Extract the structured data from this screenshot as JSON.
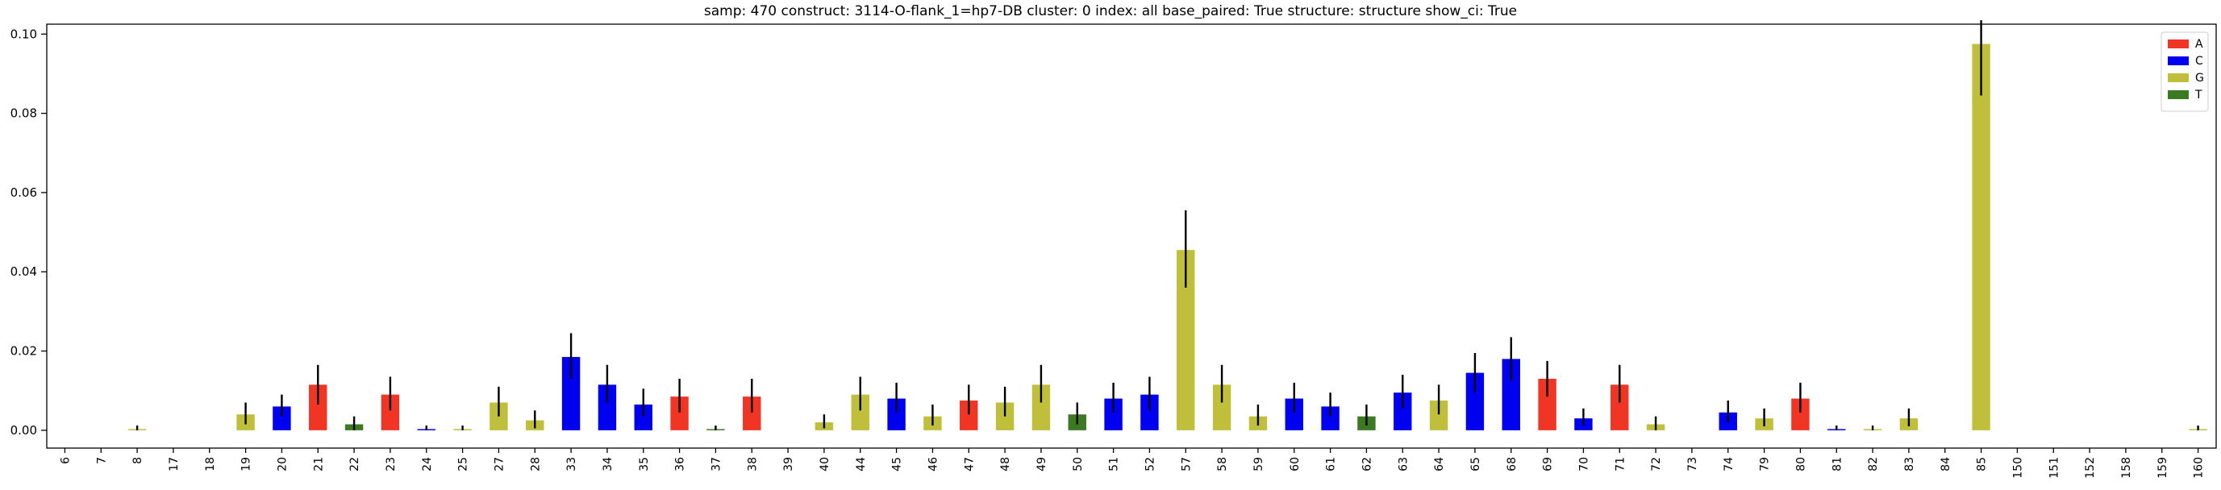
{
  "chart_data": {
    "type": "bar",
    "title": "samp: 470  construct: 3114-O-flank_1=hp7-DB  cluster: 0  index: all  base_paired: True  structure: structure  show_ci: True",
    "xlabel": "",
    "ylabel": "",
    "ylim": [
      -0.0045,
      0.1025
    ],
    "yticks": [
      0.0,
      0.02,
      0.04,
      0.06,
      0.08,
      0.1
    ],
    "ytick_labels": [
      "0.00",
      "0.02",
      "0.04",
      "0.06",
      "0.08",
      "0.10"
    ],
    "grid": false,
    "legend_position": "top-right",
    "colors": {
      "A": "#f03524",
      "C": "#0000f0",
      "G": "#bfbf3b",
      "T": "#3b7a22"
    },
    "legend": [
      {
        "label": "A",
        "color": "#f03524"
      },
      {
        "label": "C",
        "color": "#0000f0"
      },
      {
        "label": "G",
        "color": "#bfbf3b"
      },
      {
        "label": "T",
        "color": "#3b7a22"
      }
    ],
    "categories": [
      "6",
      "7",
      "8",
      "17",
      "18",
      "19",
      "20",
      "21",
      "22",
      "23",
      "24",
      "25",
      "27",
      "28",
      "33",
      "34",
      "35",
      "36",
      "37",
      "38",
      "39",
      "40",
      "44",
      "45",
      "46",
      "47",
      "48",
      "49",
      "50",
      "51",
      "52",
      "57",
      "58",
      "59",
      "60",
      "61",
      "62",
      "63",
      "64",
      "65",
      "68",
      "69",
      "70",
      "71",
      "72",
      "73",
      "74",
      "79",
      "80",
      "81",
      "82",
      "83",
      "84",
      "85",
      "150",
      "151",
      "152",
      "158",
      "159",
      "160"
    ],
    "bars": [
      {
        "x": "6",
        "base": "",
        "value": 0,
        "ci": null
      },
      {
        "x": "7",
        "base": "",
        "value": 0,
        "ci": null
      },
      {
        "x": "8",
        "base": "G",
        "value": 0.0003,
        "ci": [
          0.0,
          0.0012
        ]
      },
      {
        "x": "17",
        "base": "",
        "value": 0,
        "ci": null
      },
      {
        "x": "18",
        "base": "",
        "value": 0,
        "ci": null
      },
      {
        "x": "19",
        "base": "G",
        "value": 0.004,
        "ci": [
          0.0015,
          0.007
        ]
      },
      {
        "x": "20",
        "base": "C",
        "value": 0.006,
        "ci": [
          0.0035,
          0.009
        ]
      },
      {
        "x": "21",
        "base": "A",
        "value": 0.0115,
        "ci": [
          0.0065,
          0.0165
        ]
      },
      {
        "x": "22",
        "base": "T",
        "value": 0.0015,
        "ci": [
          0.0,
          0.0035
        ]
      },
      {
        "x": "23",
        "base": "A",
        "value": 0.009,
        "ci": [
          0.005,
          0.0135
        ]
      },
      {
        "x": "24",
        "base": "C",
        "value": 0.0003,
        "ci": [
          0.0,
          0.0012
        ]
      },
      {
        "x": "25",
        "base": "G",
        "value": 0.0003,
        "ci": [
          0.0,
          0.0012
        ]
      },
      {
        "x": "27",
        "base": "G",
        "value": 0.007,
        "ci": [
          0.0035,
          0.011
        ]
      },
      {
        "x": "28",
        "base": "G",
        "value": 0.0025,
        "ci": [
          0.0005,
          0.005
        ]
      },
      {
        "x": "33",
        "base": "C",
        "value": 0.0185,
        "ci": [
          0.013,
          0.0245
        ]
      },
      {
        "x": "34",
        "base": "C",
        "value": 0.0115,
        "ci": [
          0.007,
          0.0165
        ]
      },
      {
        "x": "35",
        "base": "C",
        "value": 0.0065,
        "ci": [
          0.0035,
          0.0105
        ]
      },
      {
        "x": "36",
        "base": "A",
        "value": 0.0085,
        "ci": [
          0.0045,
          0.013
        ]
      },
      {
        "x": "37",
        "base": "T",
        "value": 0.0003,
        "ci": [
          0.0,
          0.0012
        ]
      },
      {
        "x": "38",
        "base": "A",
        "value": 0.0085,
        "ci": [
          0.0045,
          0.013
        ]
      },
      {
        "x": "39",
        "base": "",
        "value": 0,
        "ci": null
      },
      {
        "x": "40",
        "base": "G",
        "value": 0.002,
        "ci": [
          0.0005,
          0.004
        ]
      },
      {
        "x": "44",
        "base": "G",
        "value": 0.009,
        "ci": [
          0.005,
          0.0135
        ]
      },
      {
        "x": "45",
        "base": "C",
        "value": 0.008,
        "ci": [
          0.0045,
          0.012
        ]
      },
      {
        "x": "46",
        "base": "G",
        "value": 0.0035,
        "ci": [
          0.0012,
          0.0065
        ]
      },
      {
        "x": "47",
        "base": "A",
        "value": 0.0075,
        "ci": [
          0.004,
          0.0115
        ]
      },
      {
        "x": "48",
        "base": "G",
        "value": 0.007,
        "ci": [
          0.0035,
          0.011
        ]
      },
      {
        "x": "49",
        "base": "G",
        "value": 0.0115,
        "ci": [
          0.007,
          0.0165
        ]
      },
      {
        "x": "50",
        "base": "T",
        "value": 0.004,
        "ci": [
          0.0015,
          0.007
        ]
      },
      {
        "x": "51",
        "base": "C",
        "value": 0.008,
        "ci": [
          0.0045,
          0.012
        ]
      },
      {
        "x": "52",
        "base": "C",
        "value": 0.009,
        "ci": [
          0.005,
          0.0135
        ]
      },
      {
        "x": "57",
        "base": "G",
        "value": 0.0455,
        "ci": [
          0.036,
          0.0555
        ]
      },
      {
        "x": "58",
        "base": "G",
        "value": 0.0115,
        "ci": [
          0.007,
          0.0165
        ]
      },
      {
        "x": "59",
        "base": "G",
        "value": 0.0035,
        "ci": [
          0.0012,
          0.0065
        ]
      },
      {
        "x": "60",
        "base": "C",
        "value": 0.008,
        "ci": [
          0.0045,
          0.012
        ]
      },
      {
        "x": "61",
        "base": "C",
        "value": 0.006,
        "ci": [
          0.0035,
          0.0095
        ]
      },
      {
        "x": "62",
        "base": "T",
        "value": 0.0035,
        "ci": [
          0.0012,
          0.0065
        ]
      },
      {
        "x": "63",
        "base": "C",
        "value": 0.0095,
        "ci": [
          0.0055,
          0.014
        ]
      },
      {
        "x": "64",
        "base": "G",
        "value": 0.0075,
        "ci": [
          0.004,
          0.0115
        ]
      },
      {
        "x": "65",
        "base": "C",
        "value": 0.0145,
        "ci": [
          0.0095,
          0.0195
        ]
      },
      {
        "x": "68",
        "base": "C",
        "value": 0.018,
        "ci": [
          0.0125,
          0.0235
        ]
      },
      {
        "x": "69",
        "base": "A",
        "value": 0.013,
        "ci": [
          0.0085,
          0.0175
        ]
      },
      {
        "x": "70",
        "base": "C",
        "value": 0.003,
        "ci": [
          0.0012,
          0.0055
        ]
      },
      {
        "x": "71",
        "base": "A",
        "value": 0.0115,
        "ci": [
          0.007,
          0.0165
        ]
      },
      {
        "x": "72",
        "base": "G",
        "value": 0.0015,
        "ci": [
          0.0,
          0.0035
        ]
      },
      {
        "x": "73",
        "base": "",
        "value": 0,
        "ci": null
      },
      {
        "x": "74",
        "base": "C",
        "value": 0.0045,
        "ci": [
          0.002,
          0.0075
        ]
      },
      {
        "x": "79",
        "base": "G",
        "value": 0.003,
        "ci": [
          0.001,
          0.0055
        ]
      },
      {
        "x": "80",
        "base": "A",
        "value": 0.008,
        "ci": [
          0.0045,
          0.012
        ]
      },
      {
        "x": "81",
        "base": "C",
        "value": 0.0003,
        "ci": [
          0.0,
          0.0012
        ]
      },
      {
        "x": "82",
        "base": "G",
        "value": 0.0003,
        "ci": [
          0.0,
          0.0012
        ]
      },
      {
        "x": "83",
        "base": "G",
        "value": 0.003,
        "ci": [
          0.001,
          0.0055
        ]
      },
      {
        "x": "84",
        "base": "",
        "value": 0,
        "ci": null
      },
      {
        "x": "85",
        "base": "G",
        "value": 0.0975,
        "ci": [
          0.0845,
          0.1035
        ]
      },
      {
        "x": "150",
        "base": "",
        "value": 0,
        "ci": null
      },
      {
        "x": "151",
        "base": "",
        "value": 0,
        "ci": null
      },
      {
        "x": "152",
        "base": "",
        "value": 0,
        "ci": null
      },
      {
        "x": "158",
        "base": "",
        "value": 0,
        "ci": null
      },
      {
        "x": "159",
        "base": "",
        "value": 0,
        "ci": null
      },
      {
        "x": "160",
        "base": "G",
        "value": 0.0003,
        "ci": [
          0.0,
          0.0012
        ]
      }
    ]
  }
}
